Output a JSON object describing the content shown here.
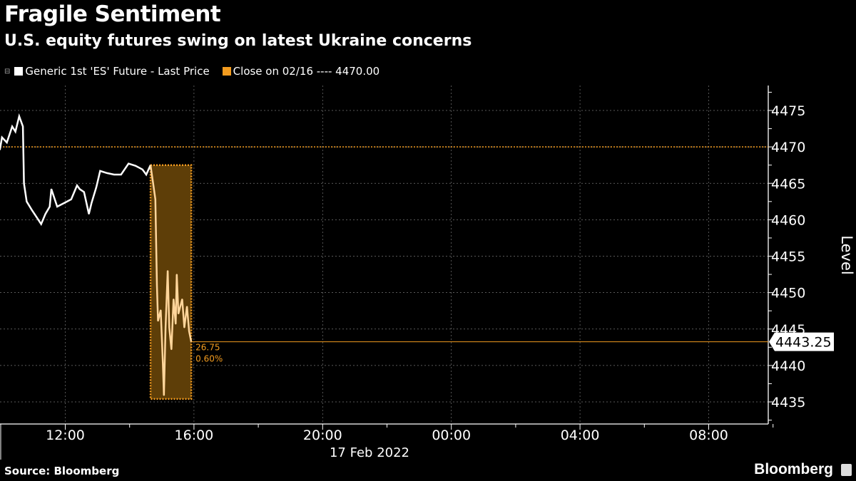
{
  "header": {
    "title": "Fragile Sentiment",
    "subtitle": "U.S. equity futures swing on latest Ukraine concerns"
  },
  "footer": {
    "source": "Source: Bloomberg",
    "logo": "Bloomberg"
  },
  "chart_data": {
    "type": "line",
    "title": "Fragile Sentiment",
    "subtitle": "U.S. equity futures swing on latest Ukraine concerns",
    "ylabel": "Level",
    "xlabel": "17 Feb 2022",
    "ylim": [
      4432,
      4478.5
    ],
    "xlim": [
      "09:58",
      "09:50+1"
    ],
    "y_ticks": [
      "4435",
      "4440",
      "4445",
      "4450",
      "4455",
      "4460",
      "4465",
      "4470",
      "4475"
    ],
    "x_ticks": [
      "12:00",
      "16:00",
      "20:00",
      "00:00",
      "04:00",
      "08:00"
    ],
    "grid": true,
    "legend_placement": "top-left",
    "colors": {
      "price": "#ffffff",
      "close": "#f39c1f",
      "highlight_fill": "#5e3e08",
      "highlight_line": "#ffd59a"
    },
    "legend": [
      "Generic 1st 'ES' Future - Last Price",
      "Close on 02/16 ---- 4470.00"
    ],
    "reference_close": 4470.0,
    "last_price": "4443.25",
    "change_annotation": {
      "points": "26.75",
      "percent": "0.60%"
    },
    "highlight_window": {
      "start": "14:39",
      "end": "15:55",
      "high": 4467.5,
      "low": 4435.4
    },
    "series": [
      {
        "name": "Generic 1st 'ES' Future - Last Price",
        "x": [
          "09:58",
          "10:02",
          "10:11",
          "10:21",
          "10:27",
          "10:34",
          "10:41",
          "10:43",
          "10:48",
          "10:58",
          "11:07",
          "11:15",
          "11:23",
          "11:31",
          "11:34",
          "11:45",
          "11:58",
          "12:11",
          "12:22",
          "12:27",
          "12:35",
          "12:44",
          "12:49",
          "12:58",
          "13:05",
          "13:18",
          "13:31",
          "13:44",
          "13:58",
          "14:11",
          "14:24",
          "14:31",
          "14:39",
          "14:44",
          "14:48",
          "14:51",
          "14:53",
          "14:58",
          "15:02",
          "15:04",
          "15:07",
          "15:11",
          "15:14",
          "15:18",
          "15:22",
          "15:26",
          "15:28",
          "15:31",
          "15:38",
          "15:42",
          "15:47",
          "15:51",
          "15:55"
        ],
        "values": [
          4469.6,
          4471.3,
          4470.6,
          4472.8,
          4472.1,
          4474.2,
          4472.8,
          4465.0,
          4462.5,
          4461.3,
          4460.3,
          4459.4,
          4460.8,
          4461.8,
          4464.2,
          4461.8,
          4462.3,
          4462.8,
          4464.7,
          4464.2,
          4463.8,
          4460.8,
          4462.3,
          4464.5,
          4466.7,
          4466.4,
          4466.2,
          4466.2,
          4467.7,
          4467.4,
          4466.9,
          4466.2,
          4467.5,
          4464.9,
          4462.8,
          4451.0,
          4446.1,
          4447.6,
          4440.3,
          4435.9,
          4445.2,
          4453.0,
          4445.2,
          4442.2,
          4449.1,
          4445.7,
          4452.5,
          4447.1,
          4449.1,
          4445.2,
          4448.1,
          4444.7,
          4443.25
        ]
      }
    ]
  }
}
